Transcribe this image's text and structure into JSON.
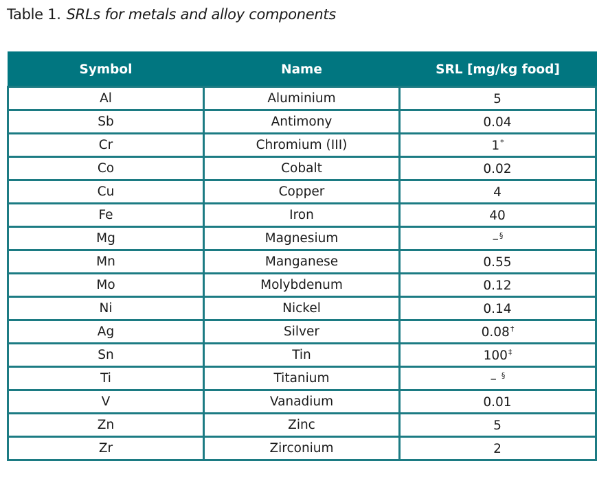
{
  "title": {
    "label": "Table 1.",
    "caption": "SRLs for metals and alloy components"
  },
  "table": {
    "headers": [
      "Symbol",
      "Name",
      "SRL [mg/kg food]"
    ],
    "rows": [
      {
        "symbol": "Al",
        "name": "Aluminium",
        "srl": "5",
        "note": ""
      },
      {
        "symbol": "Sb",
        "name": "Antimony",
        "srl": "0.04",
        "note": ""
      },
      {
        "symbol": "Cr",
        "name": "Chromium (III)",
        "srl": "1",
        "note": "*"
      },
      {
        "symbol": "Co",
        "name": "Cobalt",
        "srl": "0.02",
        "note": ""
      },
      {
        "symbol": "Cu",
        "name": "Copper",
        "srl": "4",
        "note": ""
      },
      {
        "symbol": "Fe",
        "name": "Iron",
        "srl": "40",
        "note": ""
      },
      {
        "symbol": "Mg",
        "name": "Magnesium",
        "srl": "–",
        "note": "§"
      },
      {
        "symbol": "Mn",
        "name": "Manganese",
        "srl": "0.55",
        "note": ""
      },
      {
        "symbol": "Mo",
        "name": "Molybdenum",
        "srl": "0.12",
        "note": ""
      },
      {
        "symbol": "Ni",
        "name": "Nickel",
        "srl": "0.14",
        "note": ""
      },
      {
        "symbol": "Ag",
        "name": "Silver",
        "srl": "0.08",
        "note": "†"
      },
      {
        "symbol": "Sn",
        "name": "Tin",
        "srl": "100",
        "note": "‡"
      },
      {
        "symbol": "Ti",
        "name": "Titanium",
        "srl": "– ",
        "note": "§"
      },
      {
        "symbol": "V",
        "name": "Vanadium",
        "srl": "0.01",
        "note": ""
      },
      {
        "symbol": "Zn",
        "name": "Zinc",
        "srl": "5",
        "note": ""
      },
      {
        "symbol": "Zr",
        "name": "Zirconium",
        "srl": "2",
        "note": ""
      }
    ]
  },
  "colors": {
    "header_bg": "#017680",
    "border": "#1c7b83"
  }
}
